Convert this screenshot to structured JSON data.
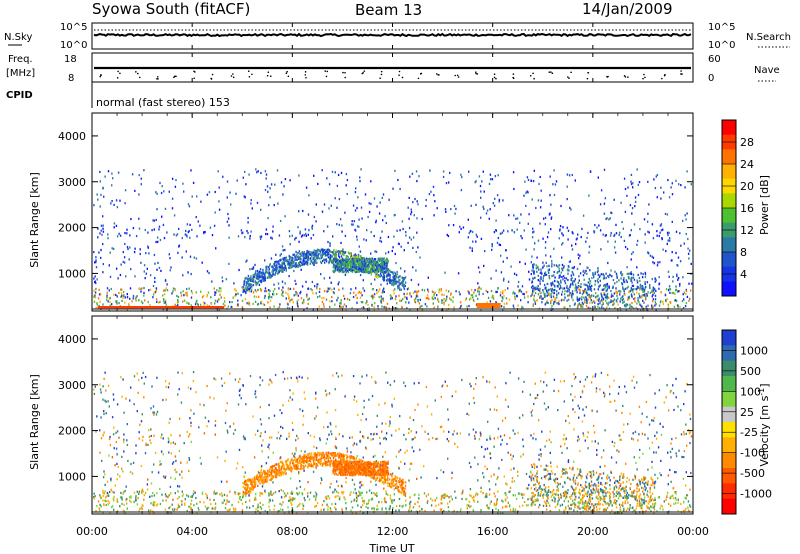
{
  "header": {
    "station": "Syowa South (fitACF)",
    "beam": "Beam 13",
    "date": "14/Jan/2009"
  },
  "strips": {
    "nsky_label": "N.Sky",
    "nsky_ticks": [
      "10^5",
      "10^0"
    ],
    "nsearch_label": "N.Search",
    "nsearch_ticks": [
      "10^5",
      "10^0"
    ],
    "freq_label_1": "Freq.",
    "freq_label_2": "[MHz]",
    "freq_ticks": [
      "18",
      "8"
    ],
    "nave_label": "Nave",
    "nave_ticks": [
      "60",
      "0"
    ],
    "cpid_label": "CPID",
    "cpid_text": "normal (fast stereo) 153"
  },
  "chart_data": [
    {
      "type": "heatmap",
      "name": "power",
      "ylabel": "Slant Range [km]",
      "yticks": [
        "4000",
        "3000",
        "2000",
        "1000"
      ],
      "ylim": [
        180,
        4500
      ],
      "xlabel": "Time UT",
      "xticks": [
        "00:00",
        "04:00",
        "08:00",
        "12:00",
        "16:00",
        "20:00",
        "00:00"
      ],
      "colorbar": {
        "label": "Power [dB]",
        "ticks": [
          "28",
          "24",
          "20",
          "16",
          "12",
          "8",
          "4"
        ],
        "colors": [
          "#ff0000",
          "#ff3a00",
          "#ff7400",
          "#ffb000",
          "#ffd800",
          "#a8d800",
          "#4fc030",
          "#3a9c6c",
          "#2a7aa8",
          "#1f55cc",
          "#1733e6",
          "#0f10ff"
        ]
      }
    },
    {
      "type": "heatmap",
      "name": "velocity",
      "ylabel": "Slant Range [km]",
      "yticks": [
        "4000",
        "3000",
        "2000",
        "1000"
      ],
      "ylim": [
        180,
        4500
      ],
      "xlabel": "Time UT",
      "xticks": [
        "00:00",
        "04:00",
        "08:00",
        "12:00",
        "16:00",
        "20:00",
        "00:00"
      ],
      "colorbar": {
        "label_main": "Velocity  [m s",
        "label_sup": "-1",
        "label_end": "]",
        "ticks": [
          "1000",
          "500",
          "100",
          "25",
          "-25",
          "-100",
          "-500",
          "-1000"
        ],
        "colors": [
          "#1f3fd0",
          "#2d6ab0",
          "#3a8c6a",
          "#4fb84a",
          "#80d440",
          "#c8c8c8",
          "#ffe000",
          "#ffb000",
          "#ff8a00",
          "#ff5a00",
          "#ff2a00",
          "#ff0000"
        ]
      }
    }
  ]
}
